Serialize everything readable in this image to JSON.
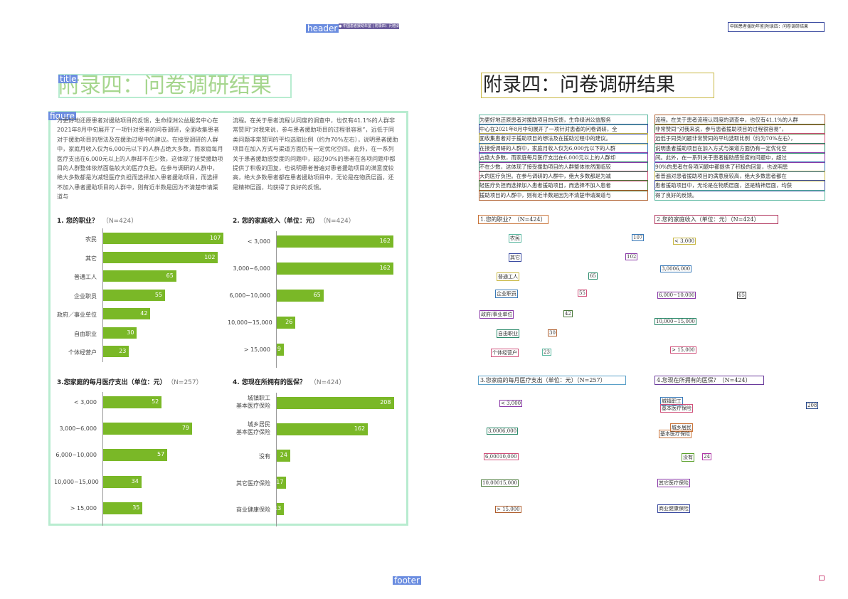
{
  "labels": {
    "header": "header",
    "title": "title",
    "figure": "figure",
    "footer": "footer"
  },
  "header_band_text": "● 中国患者援助年鉴 | 附录四：问卷调研结果",
  "right": {
    "running_head": "中国患者援助年鉴|附录四：问卷调研结果",
    "title": "附录四：问卷调研结果",
    "col1_lines": [
      "为更好地还原患者对援助项目的反馈，生命绿洲公益服务",
      "中心在2021年8月中旬展开了一项针对患者的问卷调研，全",
      "面收集患者对于援助项目的想法及在援助过程中的建议。",
      "在接受调研的人群中，家庭月收入仅为6,000元以下的人群",
      "占绝大多数，而家庭每月医疗支出在6,000元以上的人群却",
      "不在少数，这体现了接受援助项目的人群整体依然面临较",
      "大的医疗负担。在参与调研的人群中，绝大多数都是为减",
      "轻医疗负担而选择加入患者援助项目，而选择不加入患者",
      "援助项目的人群中，则有近半数是因为不清楚申请渠道与"
    ],
    "col2_lines": [
      "流程。在关于患者流程认同度的调查中，也仅有41.1%的人群",
      "非常赞同“对我来说，参与患者援助项目的过程很容易”，",
      "远低于同类问题非常赞同的平均选取比例（约为70%左右），",
      "说明患者援助项目在加入方式与渠道方面仍有一定优化空",
      "间。此外，在一系列关于患者援助感受度的问题中，超过",
      "90%的患者在各项问题中都提供了积极的回复，也说明患",
      "者普遍对患者援助项目的满意度较高，绝大多数患者都在",
      "患者援助项目中，无论是在物质层面，还是精神层面，均获",
      "得了良好的反馈。"
    ],
    "q1": "1.您的职业？（N=424）",
    "q2": "2.您的家庭收入（单位：元）（N=424）",
    "q3": "3.您家庭的每月医疗支出（单位：元）（N=257）",
    "q4": "4.您现在所拥有的医保？（N=424）",
    "c1_cats": [
      "农民",
      "其它",
      "普通工人",
      "企业职员",
      "政府/事业单位",
      "自由职业",
      "个体经营户"
    ],
    "c1_vals": [
      "107",
      "102",
      "65",
      "55",
      "42",
      "30",
      "23"
    ],
    "c2_cats": [
      "< 3,000",
      "3,0006,000",
      "6,000~10,000",
      "10,000~15,000",
      "> 15,000"
    ],
    "c2_vals": [
      "162",
      "162",
      "65",
      "26",
      "9"
    ],
    "c3_cats": [
      "< 3,000",
      "3,0006,000",
      "6,00010,000",
      "10,00015,000",
      "> 15,000"
    ],
    "c4_cats": [
      "城镇职工",
      "基本医疗保险",
      "城乡居民",
      "基本医疗保险",
      "没有",
      "其它医疗保险",
      "商业健康保险"
    ],
    "c4_vals": [
      "208",
      "24"
    ]
  },
  "left": {
    "title": "附录四：问卷调研结果",
    "para_col1": "为更好地还原患者对援助项目的反馈，生命绿洲公益服务中心在2021年8月中旬展开了一项针对患者的问卷调研，全面收集患者对于援助项目的想法及在援助过程中的建议。在接受调研的人群中，家庭月收入仅为6,000元以下的人群占绝大多数，而家庭每月医疗支出在6,000元以上的人群却不在少数，这体现了接受援助项目的人群整体依然面临较大的医疗负担。在参与调研的人群中，绝大多数都是为减轻医疗负担而选择加入患者援助项目，而选择不加入患者援助项目的人群中，则有近半数是因为不清楚申请渠道与",
    "para_col2": "流程。在关于患者流程认同度的调查中，也仅有41.1%的人群非常赞同“对我来说，参与患者援助项目的过程很容易”，远低于同类问题非常赞同的平均选取比例（约为70%左右），说明患者援助项目在加入方式与渠道方面仍有一定优化空间。此外，在一系列关于患者援助感受度的问题中，超过90%的患者在各项问题中都提供了积极的回复，也说明患者普遍对患者援助项目的满意度较高，绝大多数患者都在患者援助项目中，无论是在物质层面，还是精神层面，均获得了良好的反馈。"
  },
  "chart_data": [
    {
      "type": "bar",
      "title": "1. 您的职业？",
      "n_label": "（N=424）",
      "categories": [
        "农民",
        "其它",
        "普通工人",
        "企业职员",
        "政府／事业单位",
        "自由职业",
        "个体经营户"
      ],
      "values": [
        107,
        102,
        65,
        55,
        42,
        30,
        23
      ],
      "xlim": [
        0,
        115
      ]
    },
    {
      "type": "bar",
      "title": "2. 您的家庭收入（单位：元）",
      "n_label": "（N=424）",
      "categories": [
        "< 3,000",
        "3,000~6,000",
        "6,000~10,000",
        "10,000~15,000",
        "> 15,000"
      ],
      "values": [
        162,
        162,
        65,
        26,
        9
      ],
      "xlim": [
        0,
        172
      ]
    },
    {
      "type": "bar",
      "title": "3.您家庭的每月医疗支出（单位：元）",
      "n_label": "（N=257）",
      "categories": [
        "< 3,000",
        "3,000~6,000",
        "6,000~10,000",
        "10,000~15,000",
        "> 15,000"
      ],
      "values": [
        52,
        79,
        57,
        34,
        35
      ],
      "xlim": [
        0,
        115
      ]
    },
    {
      "type": "bar",
      "title": "4. 您现在所拥有的医保？",
      "n_label": "（N=424）",
      "categories": [
        "城镇职工\n基本医疗保险",
        "城乡居民\n基本医疗保险",
        "没有",
        "其它医疗保险",
        "商业健康保险"
      ],
      "values": [
        208,
        162,
        24,
        17,
        13
      ],
      "xlim": [
        0,
        220
      ]
    }
  ],
  "colors": {
    "bar": "#7ab827",
    "title_green": "#9fd08a",
    "label_blue": "#6b8de0",
    "figure_box": "#b8ecd0"
  }
}
